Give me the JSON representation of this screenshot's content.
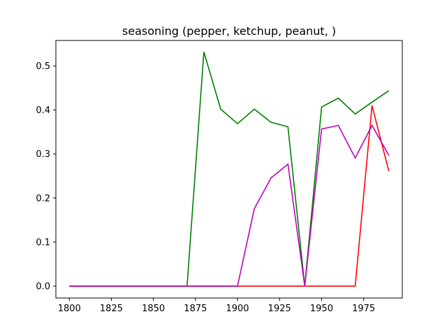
{
  "chart_data": {
    "type": "line",
    "title": "seasoning (pepper, ketchup, peanut, )",
    "xlabel": "",
    "ylabel": "",
    "xlim": [
      1792,
      1998
    ],
    "ylim": [
      -0.027,
      0.558
    ],
    "grid": false,
    "x_ticks": [
      1800,
      1825,
      1850,
      1875,
      1900,
      1925,
      1950,
      1975
    ],
    "y_ticks": [
      0.0,
      0.1,
      0.2,
      0.3,
      0.4,
      0.5
    ],
    "x_tick_labels": [
      "1800",
      "1825",
      "1850",
      "1875",
      "1900",
      "1925",
      "1950",
      "1975"
    ],
    "y_tick_labels": [
      "0.0",
      "0.1",
      "0.2",
      "0.3",
      "0.4",
      "0.5"
    ],
    "x": [
      1800,
      1810,
      1820,
      1830,
      1840,
      1850,
      1860,
      1870,
      1880,
      1890,
      1900,
      1910,
      1920,
      1930,
      1940,
      1950,
      1960,
      1970,
      1980,
      1990
    ],
    "series": [
      {
        "color": "#008000",
        "values": [
          0,
          0,
          0,
          0,
          0,
          0,
          0,
          0,
          0.532,
          0.402,
          0.369,
          0.402,
          0.372,
          0.362,
          0,
          0.407,
          0.427,
          0.391,
          0.418,
          0.444
        ]
      },
      {
        "color": "#ff0000",
        "values": [
          0,
          0,
          0,
          0,
          0,
          0,
          0,
          0,
          0,
          0,
          0,
          0,
          0,
          0,
          0,
          0,
          0,
          0,
          0.41,
          0.261
        ]
      },
      {
        "color": "#bf00bf",
        "values": [
          0,
          0,
          0,
          0,
          0,
          0,
          0,
          0,
          0,
          0,
          0,
          0.176,
          0.246,
          0.277,
          0,
          0.357,
          0.365,
          0.291,
          0.365,
          0.297
        ]
      }
    ]
  }
}
